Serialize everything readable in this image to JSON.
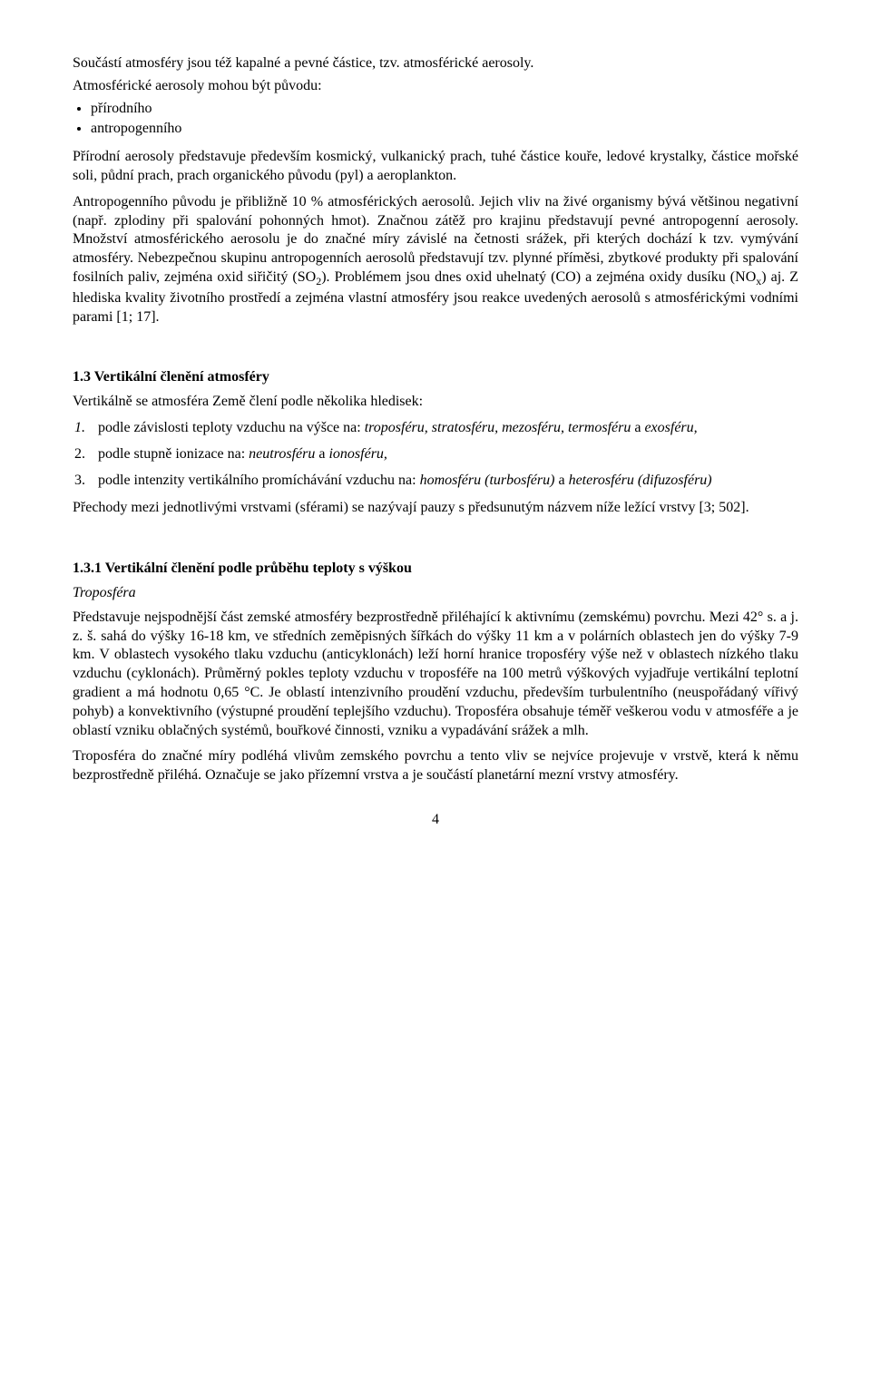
{
  "intro": "Součástí atmosféry jsou též kapalné a pevné částice, tzv. atmosférické aerosoly.",
  "originsIntro": "Atmosférické aerosoly mohou být původu:",
  "origins": [
    "přírodního",
    "antropogenního"
  ],
  "para1_a": "Přírodní aerosoly představuje především kosmický, vulkanický prach, tuhé částice kouře, ledové krystalky, částice mořské soli, půdní prach, prach organického původu (pyl) a aeroplankton.",
  "para2_a": "Antropogenního původu je  přibližně 10 % atmosférických aerosolů. Jejich vliv na živé organismy bývá většinou negativní (např. zplodiny při spalování pohonných hmot). Značnou zátěž pro krajinu představují pevné antropogenní aerosoly. Množství atmosférického aerosolu je do značné míry závislé na četnosti srážek, při kterých dochází k tzv. vymývání atmosféry. Nebezpečnou skupinu antropogenních aerosolů představují tzv. plynné příměsi, zbytkové produkty při spalování fosilních paliv, zejména oxid siřičitý (SO",
  "para2_b": "). Problémem jsou dnes oxid uhelnatý (CO) a zejména oxidy dusíku (NO",
  "para2_c": ") aj. Z hlediska kvality životního prostředí a zejména vlastní atmosféry jsou reakce uvedených aerosolů s atmosférickými vodními parami [1; 17].",
  "sub2": "2",
  "subx": "x",
  "sec13_title": "1.3 Vertikální členění atmosféry",
  "sec13_intro": "Vertikálně se atmosféra Země člení podle několika hledisek:",
  "list1_num": "1.",
  "list1_a": "podle závislosti teploty vzduchu na výšce na: ",
  "list1_b": "troposféru, stratosféru, mezosféru, termosféru ",
  "list1_c": "a ",
  "list1_d": "exosféru,",
  "list2_num": "2.",
  "list2_a": "podle stupně ionizace na: ",
  "list2_b": "neutrosféru ",
  "list2_c": "a ",
  "list2_d": "ionosféru,",
  "list3_num": "3.",
  "list3_a": "podle intenzity vertikálního promíchávání vzduchu na: ",
  "list3_b": "homosféru (turbosféru) ",
  "list3_c": "a ",
  "list3_d": "heterosféru (difuzosféru)",
  "sec13_trans": "Přechody mezi jednotlivými vrstvami (sférami) se nazývají pauzy s předsunutým názvem níže ležící vrstvy [3; 502].",
  "sec131_title": "1.3.1 Vertikální členění podle průběhu teploty s výškou",
  "sec131_sub": "Troposféra",
  "sec131_p1": "Představuje nejspodnější část zemské atmosféry bezprostředně přiléhající k aktivnímu (zemskému) povrchu. Mezi 42° s. a j. z. š. sahá do výšky 16-18 km, ve středních zeměpisných šířkách do výšky 11 km a v polárních oblastech jen do výšky 7-9 km. V oblastech vysokého tlaku vzduchu (anticyklonách) leží horní hranice troposféry výše než v oblastech nízkého tlaku vzduchu (cyklonách). Průměrný pokles teploty vzduchu v troposféře na 100 metrů výškových vyjadřuje vertikální teplotní gradient a má hodnotu 0,65 °C. Je oblastí intenzivního proudění vzduchu, především turbulentního (neuspořádaný vířivý pohyb) a konvektivního (výstupné proudění teplejšího vzduchu). Troposféra obsahuje téměř veškerou vodu v atmosféře a je oblastí vzniku oblačných systémů, bouřkové činnosti, vzniku a vypadávání srážek a mlh.",
  "sec131_p2": "Troposféra do značné míry podléhá vlivům zemského povrchu a tento vliv se nejvíce projevuje v vrstvě, která k němu bezprostředně přiléhá. Označuje se jako přízemní vrstva a je součástí planetární mezní vrstvy atmosféry.",
  "pageNumber": "4"
}
